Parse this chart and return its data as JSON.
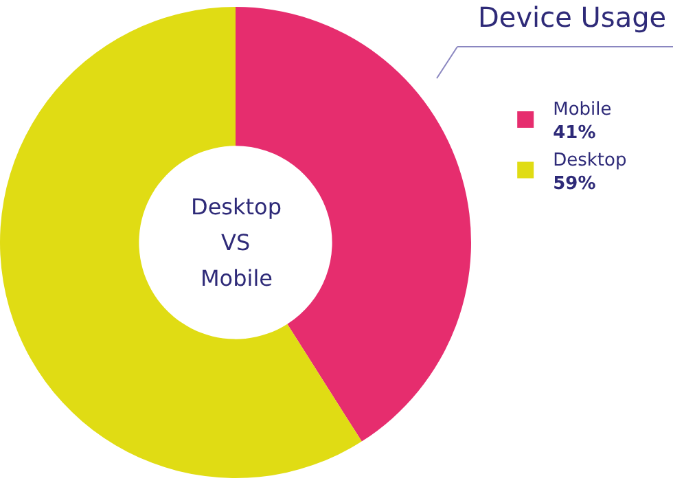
{
  "chart_data": {
    "type": "donut",
    "title": "Device Usage",
    "categories": [
      "Mobile",
      "Desktop"
    ],
    "values": [
      41,
      59
    ],
    "colors": [
      "#e62d6e",
      "#e0dc14"
    ],
    "value_labels": [
      "41%",
      "59%"
    ],
    "legend": "top right",
    "annotations": [
      "Desktop",
      "VS",
      "Mobile"
    ]
  }
}
